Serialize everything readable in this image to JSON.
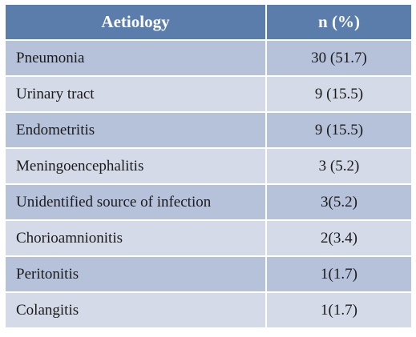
{
  "table": {
    "header": [
      "Aetiology",
      "n (%)"
    ],
    "rows": [
      [
        "Pneumonia",
        "30 (51.7)"
      ],
      [
        "Urinary tract",
        "9 (15.5)"
      ],
      [
        "Endometritis",
        "9 (15.5)"
      ],
      [
        "Meningoencephalitis",
        "3 (5.2)"
      ],
      [
        "Unidentified source of infection",
        "3(5.2)"
      ],
      [
        "Chorioamnionitis",
        "2(3.4)"
      ],
      [
        "Peritonitis",
        "1(1.7)"
      ],
      [
        "Colangitis",
        "1(1.7)"
      ]
    ]
  }
}
